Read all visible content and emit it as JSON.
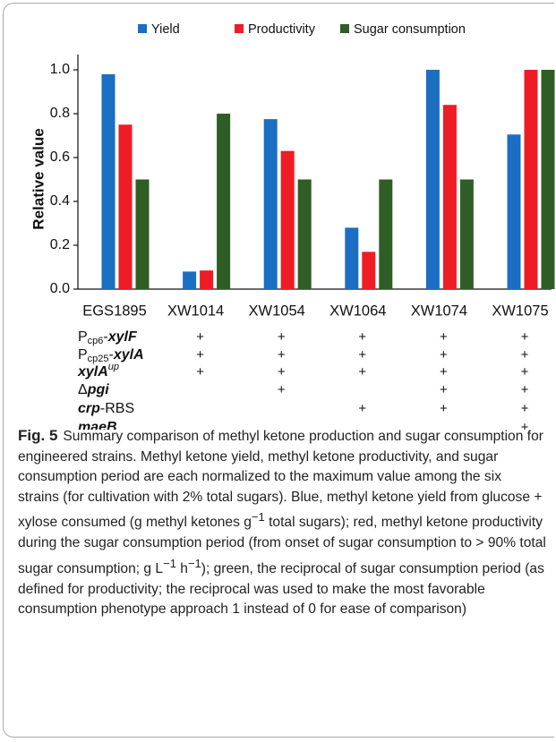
{
  "chart_data": {
    "type": "bar",
    "y_label": "Relative value",
    "categories": [
      "EGS1895",
      "XW1014",
      "XW1054",
      "XW1064",
      "XW1074",
      "XW1075"
    ],
    "series": [
      {
        "name": "Yield",
        "color": "#1b6ec2",
        "values": [
          0.98,
          0.08,
          0.775,
          0.28,
          1.0,
          0.705
        ]
      },
      {
        "name": "Productivity",
        "color": "#ee1c24",
        "values": [
          0.75,
          0.085,
          0.63,
          0.17,
          0.84,
          1.0
        ]
      },
      {
        "name": "Sugar consumption",
        "color": "#2f5d26",
        "values": [
          0.5,
          0.8,
          0.5,
          0.5,
          0.5,
          1.0
        ]
      }
    ],
    "ylim": [
      0,
      1.07
    ],
    "yticks": [
      {
        "value": 0,
        "label": "0.0"
      },
      0.2,
      0.4,
      0.6,
      0.8,
      {
        "value": 1,
        "label": "1.0"
      }
    ],
    "legend": "top"
  },
  "genotype": {
    "rows": [
      {
        "label": [
          "P",
          "cp6",
          "-",
          "xylF"
        ],
        "marks": [
          null,
          "+",
          "+",
          "+",
          "+",
          "+"
        ]
      },
      {
        "label": [
          "P",
          "cp25",
          "-",
          "xylA"
        ],
        "marks": [
          null,
          "+",
          "+",
          "+",
          "+",
          "+"
        ]
      },
      {
        "label": [
          "xylA",
          "up"
        ],
        "marks": [
          null,
          "+",
          "+",
          "+",
          "+",
          "+"
        ]
      },
      {
        "label": [
          "Δ",
          "pgi"
        ],
        "marks": [
          null,
          null,
          "+",
          null,
          "+",
          "+"
        ]
      },
      {
        "label": [
          "crp",
          "-RBS"
        ],
        "marks": [
          null,
          null,
          null,
          "+",
          "+",
          "+"
        ]
      },
      {
        "label": [
          "maeB"
        ],
        "marks": [
          null,
          null,
          null,
          null,
          null,
          "+"
        ]
      }
    ]
  },
  "caption": {
    "label": "Fig. 5",
    "parts": [
      "Summary comparison of methyl ketone production and sugar consumption for engineered strains. Methyl ketone yield, methyl ketone productivity, and sugar consumption period are each normalized to the maximum value among the six strains (for cultivation with 2% total sugars). Blue, methyl ketone yield from glucose + xylose consumed (g methyl ketones g",
      "−1",
      " total sugars); red, methyl ketone productivity during the sugar consumption period (from onset of sugar consumption to > 90% total sugar consumption; g L",
      "−1",
      " h",
      "−1",
      "); green, the reciprocal of sugar consumption period (as defined for productivity; the reciprocal was used to make the most favorable consumption phenotype approach 1 instead of 0 for ease of comparison)"
    ]
  }
}
